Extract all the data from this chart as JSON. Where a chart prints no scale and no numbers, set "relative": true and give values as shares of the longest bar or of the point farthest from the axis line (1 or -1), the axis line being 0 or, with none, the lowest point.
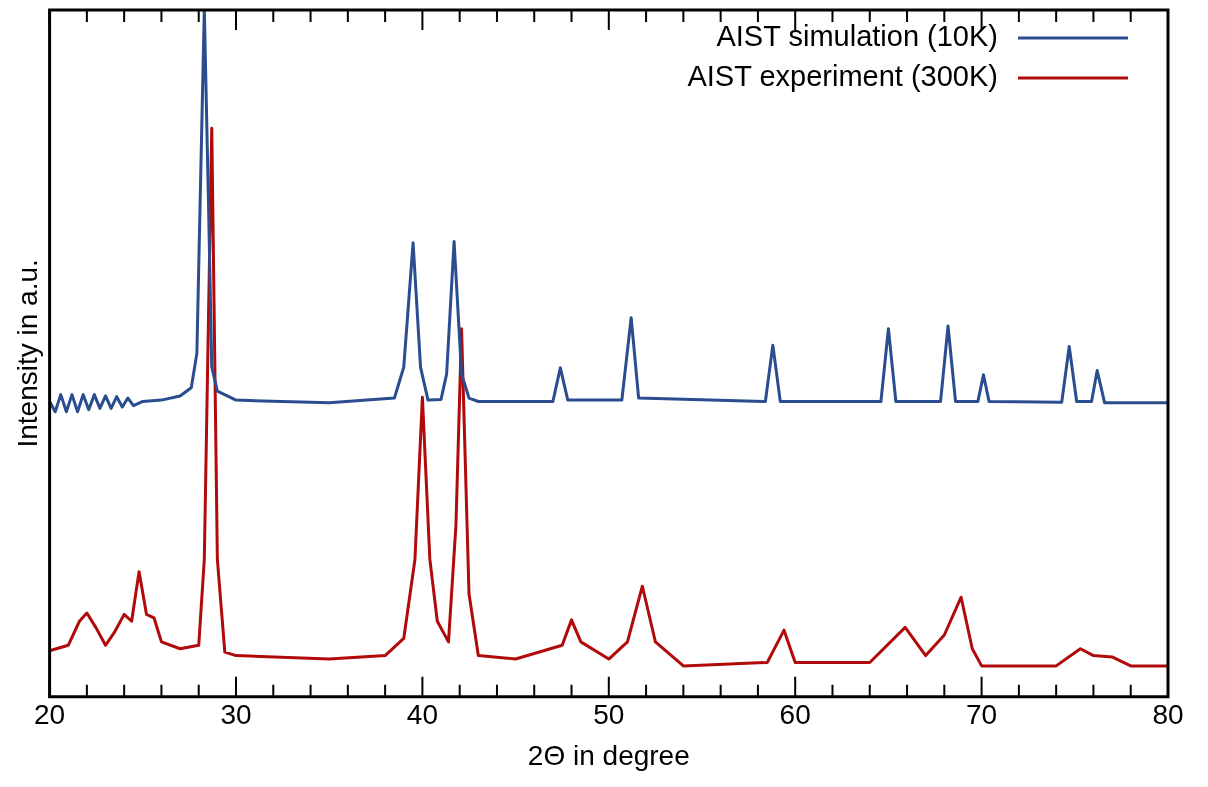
{
  "chart_data": {
    "type": "line",
    "relative": true,
    "xlabel": "2Θ in degree",
    "ylabel": "Intensity in a.u.",
    "xlim": [
      20,
      80
    ],
    "xticks": [
      20,
      {
        "value": 22,
        "label": null
      },
      {
        "value": 24,
        "label": null
      },
      {
        "value": 26,
        "label": null
      },
      {
        "value": 28,
        "label": null
      },
      30,
      {
        "value": 32,
        "label": null
      },
      {
        "value": 34,
        "label": null
      },
      {
        "value": 36,
        "label": null
      },
      {
        "value": 38,
        "label": null
      },
      40,
      {
        "value": 42,
        "label": null
      },
      {
        "value": 44,
        "label": null
      },
      {
        "value": 46,
        "label": null
      },
      {
        "value": 48,
        "label": null
      },
      50,
      {
        "value": 52,
        "label": null
      },
      {
        "value": 54,
        "label": null
      },
      {
        "value": 56,
        "label": null
      },
      {
        "value": 58,
        "label": null
      },
      60,
      {
        "value": 62,
        "label": null
      },
      {
        "value": 64,
        "label": null
      },
      {
        "value": 66,
        "label": null
      },
      {
        "value": 68,
        "label": null
      },
      70,
      {
        "value": 72,
        "label": null
      },
      {
        "value": 74,
        "label": null
      },
      {
        "value": 76,
        "label": null
      },
      {
        "value": 78,
        "label": null
      },
      80
    ],
    "tick_labels": "x",
    "grid": false,
    "legend": "top right",
    "marker": "none",
    "line_style": "solid",
    "series": [
      {
        "name": "AIST simulation (10K)",
        "color": "#2a4d8f",
        "x": [
          20,
          20.3,
          20.6,
          20.9,
          21.2,
          21.5,
          21.8,
          22.1,
          22.4,
          22.7,
          23,
          23.3,
          23.6,
          23.9,
          24.2,
          24.5,
          25,
          26,
          27,
          27.6,
          27.9,
          28.1,
          28.3,
          28.5,
          28.7,
          29,
          30,
          35,
          38.5,
          39,
          39.5,
          39.9,
          40.3,
          41,
          41.3,
          41.7,
          42.1,
          42.5,
          43,
          47,
          47.4,
          47.8,
          50.7,
          51.2,
          51.6,
          58.4,
          58.8,
          59.2,
          64.6,
          65,
          65.4,
          67.8,
          68.2,
          68.6,
          69.8,
          70.1,
          70.4,
          74.3,
          74.7,
          75.1,
          75.9,
          76.2,
          76.6,
          80
        ],
        "values": [
          0.43,
          0.415,
          0.44,
          0.415,
          0.44,
          0.415,
          0.44,
          0.418,
          0.44,
          0.42,
          0.438,
          0.42,
          0.437,
          0.422,
          0.435,
          0.424,
          0.43,
          0.432,
          0.438,
          0.45,
          0.5,
          0.75,
          1,
          0.75,
          0.48,
          0.445,
          0.432,
          0.428,
          0.435,
          0.48,
          0.661,
          0.48,
          0.432,
          0.433,
          0.47,
          0.663,
          0.47,
          0.435,
          0.43,
          0.43,
          0.479,
          0.432,
          0.432,
          0.552,
          0.435,
          0.43,
          0.512,
          0.43,
          0.43,
          0.536,
          0.43,
          0.43,
          0.54,
          0.43,
          0.43,
          0.469,
          0.43,
          0.429,
          0.51,
          0.43,
          0.43,
          0.475,
          0.428,
          0.428
        ]
      },
      {
        "name": "AIST experiment (300K)",
        "color": "#b00a0a",
        "x": [
          20,
          21,
          21.6,
          22,
          22.5,
          23,
          23.5,
          24,
          24.4,
          24.8,
          25.2,
          25.6,
          26,
          27,
          28,
          28.3,
          28.7,
          29,
          29.4,
          30,
          35,
          38,
          39,
          39.6,
          40,
          40.4,
          40.8,
          41.4,
          41.8,
          42.1,
          42.5,
          43,
          45,
          47.5,
          48,
          48.5,
          50,
          51,
          51.8,
          52.5,
          54,
          58.5,
          59.4,
          60,
          64,
          65.9,
          67,
          68,
          68.9,
          69.5,
          70,
          74,
          75.3,
          76,
          77,
          78,
          80
        ],
        "values": [
          0.067,
          0.075,
          0.11,
          0.122,
          0.1,
          0.075,
          0.095,
          0.12,
          0.11,
          0.182,
          0.12,
          0.115,
          0.08,
          0.07,
          0.075,
          0.2,
          0.828,
          0.2,
          0.065,
          0.06,
          0.055,
          0.06,
          0.085,
          0.2,
          0.436,
          0.2,
          0.11,
          0.08,
          0.25,
          0.536,
          0.15,
          0.06,
          0.055,
          0.075,
          0.112,
          0.08,
          0.055,
          0.08,
          0.161,
          0.08,
          0.045,
          0.05,
          0.097,
          0.05,
          0.05,
          0.101,
          0.06,
          0.09,
          0.145,
          0.07,
          0.045,
          0.045,
          0.07,
          0.06,
          0.058,
          0.045,
          0.045
        ]
      }
    ]
  }
}
